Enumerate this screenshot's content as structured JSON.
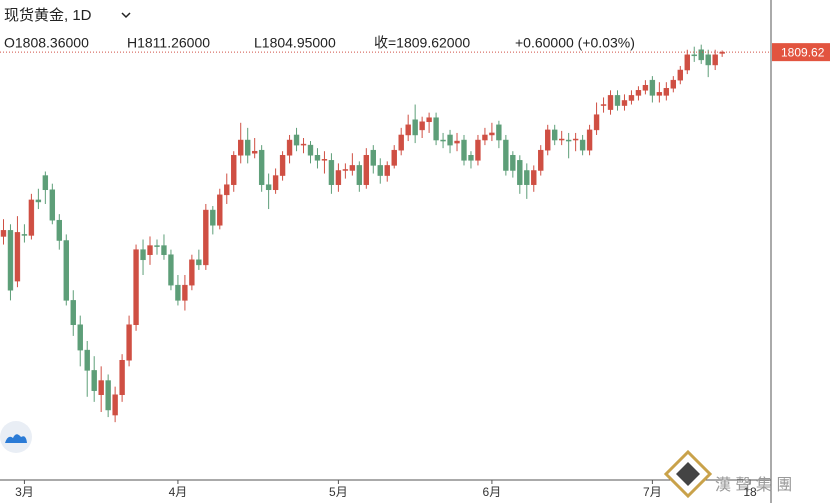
{
  "chart_data": {
    "type": "candlestick",
    "title": "现货黄金, 1D",
    "ohlc_text": [
      "O1808.36000",
      "H1811.26000",
      "L1804.95000",
      "收=1809.62000",
      "+0.60000 (+0.03%)"
    ],
    "up_color": "#cf4f43",
    "down_color": "#5d9e78",
    "open": [
      1628,
      1634,
      1584,
      1630,
      1629,
      1664,
      1688,
      1674,
      1644,
      1624,
      1565,
      1541,
      1516,
      1496,
      1472,
      1486,
      1452,
      1472,
      1506,
      1541,
      1615,
      1610,
      1619,
      1619,
      1610,
      1580,
      1565,
      1580,
      1605,
      1600,
      1654,
      1639,
      1669,
      1679,
      1708,
      1723,
      1710,
      1713,
      1679,
      1674,
      1688,
      1708,
      1728,
      1718,
      1718,
      1708,
      1703,
      1703,
      1679,
      1693,
      1693,
      1698,
      1679,
      1713,
      1698,
      1688,
      1698,
      1713,
      1728,
      1743,
      1733,
      1741,
      1745,
      1723,
      1728,
      1720,
      1723,
      1708,
      1703,
      1723,
      1728,
      1738,
      1723,
      1708,
      1703,
      1693,
      1679,
      1693,
      1713,
      1733,
      1723,
      1723,
      1723,
      1723,
      1713,
      1733,
      1757,
      1753,
      1767,
      1757,
      1762,
      1767,
      1772,
      1782,
      1767,
      1767,
      1774,
      1782,
      1792,
      1807,
      1812,
      1807,
      1797,
      1808.36
    ],
    "high": [
      1645,
      1640,
      1648,
      1640,
      1670,
      1675,
      1692,
      1680,
      1650,
      1630,
      1575,
      1550,
      1525,
      1510,
      1500,
      1492,
      1480,
      1512,
      1550,
      1620,
      1625,
      1628,
      1625,
      1630,
      1615,
      1590,
      1590,
      1610,
      1615,
      1660,
      1658,
      1675,
      1690,
      1712,
      1740,
      1735,
      1725,
      1718,
      1690,
      1695,
      1712,
      1728,
      1735,
      1725,
      1722,
      1715,
      1712,
      1710,
      1700,
      1700,
      1710,
      1702,
      1715,
      1718,
      1705,
      1702,
      1718,
      1735,
      1748,
      1758,
      1746,
      1750,
      1750,
      1730,
      1733,
      1730,
      1728,
      1712,
      1728,
      1735,
      1740,
      1742,
      1728,
      1712,
      1708,
      1700,
      1698,
      1718,
      1738,
      1738,
      1732,
      1730,
      1730,
      1728,
      1738,
      1760,
      1765,
      1772,
      1772,
      1768,
      1772,
      1776,
      1782,
      1786,
      1780,
      1780,
      1786,
      1796,
      1812,
      1815,
      1817,
      1812,
      1812,
      1811.26
    ],
    "low": [
      1620,
      1565,
      1578,
      1622,
      1625,
      1655,
      1660,
      1640,
      1615,
      1560,
      1530,
      1500,
      1470,
      1465,
      1455,
      1450,
      1445,
      1465,
      1500,
      1535,
      1590,
      1600,
      1610,
      1605,
      1575,
      1560,
      1555,
      1575,
      1595,
      1595,
      1630,
      1635,
      1660,
      1672,
      1700,
      1700,
      1705,
      1672,
      1655,
      1670,
      1683,
      1700,
      1712,
      1710,
      1700,
      1695,
      1690,
      1670,
      1672,
      1685,
      1688,
      1672,
      1675,
      1690,
      1680,
      1682,
      1695,
      1708,
      1722,
      1720,
      1725,
      1730,
      1718,
      1715,
      1710,
      1712,
      1698,
      1695,
      1698,
      1718,
      1722,
      1715,
      1688,
      1686,
      1670,
      1665,
      1672,
      1688,
      1708,
      1718,
      1718,
      1705,
      1712,
      1708,
      1708,
      1728,
      1750,
      1748,
      1752,
      1752,
      1758,
      1762,
      1768,
      1760,
      1760,
      1762,
      1770,
      1778,
      1788,
      1800,
      1798,
      1785,
      1792,
      1804.95
    ],
    "close": [
      1634,
      1575,
      1632,
      1629,
      1664,
      1662,
      1674,
      1644,
      1624,
      1565,
      1541,
      1516,
      1496,
      1476,
      1486,
      1457,
      1472,
      1506,
      1541,
      1615,
      1605,
      1619,
      1618,
      1610,
      1580,
      1565,
      1580,
      1605,
      1600,
      1654,
      1639,
      1669,
      1679,
      1708,
      1723,
      1708,
      1712,
      1679,
      1674,
      1688,
      1708,
      1723,
      1718,
      1719,
      1708,
      1703,
      1704,
      1679,
      1693,
      1694,
      1698,
      1679,
      1708,
      1698,
      1688,
      1698,
      1713,
      1728,
      1738,
      1728,
      1741,
      1745,
      1723,
      1722,
      1718,
      1722,
      1703,
      1703,
      1723,
      1728,
      1730,
      1723,
      1693,
      1693,
      1679,
      1679,
      1693,
      1713,
      1733,
      1723,
      1724,
      1722,
      1724,
      1713,
      1733,
      1748,
      1758,
      1767,
      1757,
      1762,
      1767,
      1772,
      1777,
      1767,
      1770,
      1774,
      1782,
      1792,
      1807,
      1806,
      1802,
      1797,
      1807,
      1809.62
    ],
    "xlim": [
      -0.5,
      110
    ],
    "xticks": [
      {
        "value": 3,
        "label": "3月"
      },
      {
        "value": 25,
        "label": "4月"
      },
      {
        "value": 48,
        "label": "5月"
      },
      {
        "value": 70,
        "label": "6月"
      },
      {
        "value": 93,
        "label": "7月"
      },
      {
        "value": 107,
        "label": "18"
      }
    ],
    "ylim": [
      1388,
      1861
    ],
    "last_price": 1809.62,
    "last_price_label": "1809.62",
    "watermark": "漢 聲 集 團"
  }
}
